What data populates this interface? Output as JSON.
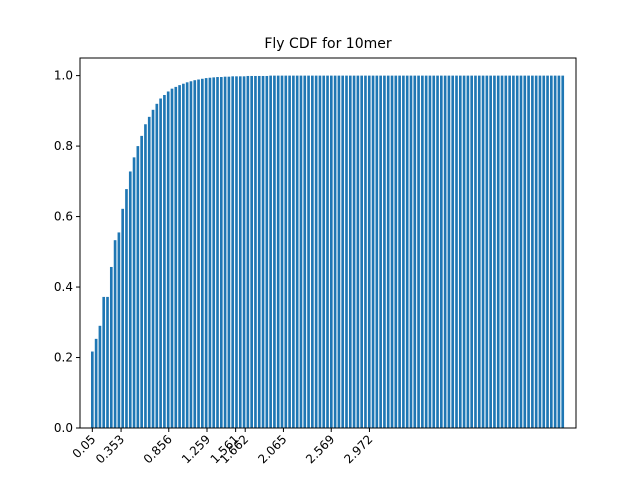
{
  "chart_data": {
    "type": "bar",
    "title": "Fly CDF for 10mer",
    "xlabel": "",
    "ylabel": "",
    "ylim": [
      0,
      1.05
    ],
    "yticks": [
      0.0,
      0.2,
      0.4,
      0.6,
      0.8,
      1.0
    ],
    "ytick_labels": [
      "0.0",
      "0.2",
      "0.4",
      "0.6",
      "0.8",
      "1.0"
    ],
    "xlim": [
      -0.08,
      5.15
    ],
    "bar_width": 0.028,
    "bar_color": "#1f77b4",
    "grid": false,
    "xticks": [
      {
        "value": 0.05,
        "label": "0.05"
      },
      {
        "value": 0.353,
        "label": "0.353"
      },
      {
        "value": 0.856,
        "label": "0.856"
      },
      {
        "value": 1.259,
        "label": "1.259"
      },
      {
        "value": 1.561,
        "label": "1.561"
      },
      {
        "value": 1.662,
        "label": "1.662"
      },
      {
        "value": 2.065,
        "label": "2.065"
      },
      {
        "value": 2.569,
        "label": "2.569"
      },
      {
        "value": 2.972,
        "label": "2.972"
      }
    ],
    "series": [
      {
        "x": [
          0.05,
          0.09,
          0.13,
          0.17,
          0.21,
          0.25,
          0.29,
          0.33,
          0.37,
          0.41,
          0.45,
          0.49,
          0.53,
          0.57,
          0.61,
          0.65,
          0.69,
          0.73,
          0.77,
          0.81,
          0.85,
          0.89,
          0.93,
          0.97,
          1.01,
          1.05,
          1.09,
          1.13,
          1.17,
          1.21,
          1.25,
          1.29,
          1.33,
          1.37,
          1.41,
          1.45,
          1.49,
          1.53,
          1.57,
          1.61,
          1.65,
          1.69,
          1.73,
          1.77,
          1.81,
          1.85,
          1.89,
          1.93,
          1.97,
          2.01,
          2.05,
          2.09,
          2.13,
          2.17,
          2.21,
          2.25,
          2.29,
          2.33,
          2.37,
          2.41,
          2.45,
          2.49,
          2.53,
          2.57,
          2.61,
          2.65,
          2.69,
          2.73,
          2.77,
          2.81,
          2.85,
          2.89,
          2.93,
          2.97,
          3.01,
          3.05,
          3.09,
          3.13,
          3.17,
          3.21,
          3.25,
          3.29,
          3.33,
          3.37,
          3.41,
          3.45,
          3.49,
          3.53,
          3.57,
          3.61,
          3.65,
          3.69,
          3.73,
          3.77,
          3.81,
          3.85,
          3.89,
          3.93,
          3.97,
          4.01,
          4.05,
          4.09,
          4.13,
          4.17,
          4.21,
          4.25,
          4.29,
          4.33,
          4.37,
          4.41,
          4.45,
          4.49,
          4.53,
          4.57,
          4.61,
          4.65,
          4.69,
          4.73,
          4.77,
          4.81,
          4.85,
          4.89,
          4.93,
          4.97,
          5.01
        ],
        "values": [
          0.217,
          0.253,
          0.29,
          0.372,
          0.372,
          0.457,
          0.533,
          0.555,
          0.622,
          0.678,
          0.728,
          0.768,
          0.8,
          0.829,
          0.862,
          0.883,
          0.903,
          0.92,
          0.935,
          0.945,
          0.955,
          0.963,
          0.968,
          0.973,
          0.977,
          0.981,
          0.984,
          0.987,
          0.989,
          0.991,
          0.993,
          0.994,
          0.995,
          0.996,
          0.996,
          0.997,
          0.997,
          0.998,
          0.998,
          0.998,
          0.998,
          0.999,
          0.999,
          0.999,
          0.999,
          0.999,
          0.999,
          1,
          1,
          1,
          1,
          1,
          1,
          1,
          1,
          1,
          1,
          1,
          1,
          1,
          1,
          1,
          1,
          1,
          1,
          1,
          1,
          1,
          1,
          1,
          1,
          1,
          1,
          1,
          1,
          1,
          1,
          1,
          1,
          1,
          1,
          1,
          1,
          1,
          1,
          1,
          1,
          1,
          1,
          1,
          1,
          1,
          1,
          1,
          1,
          1,
          1,
          1,
          1,
          1,
          1,
          1,
          1,
          1,
          1,
          1,
          1,
          1,
          1,
          1,
          1,
          1,
          1,
          1,
          1,
          1,
          1,
          1,
          1,
          1,
          1,
          1,
          1,
          1,
          1
        ]
      }
    ]
  }
}
